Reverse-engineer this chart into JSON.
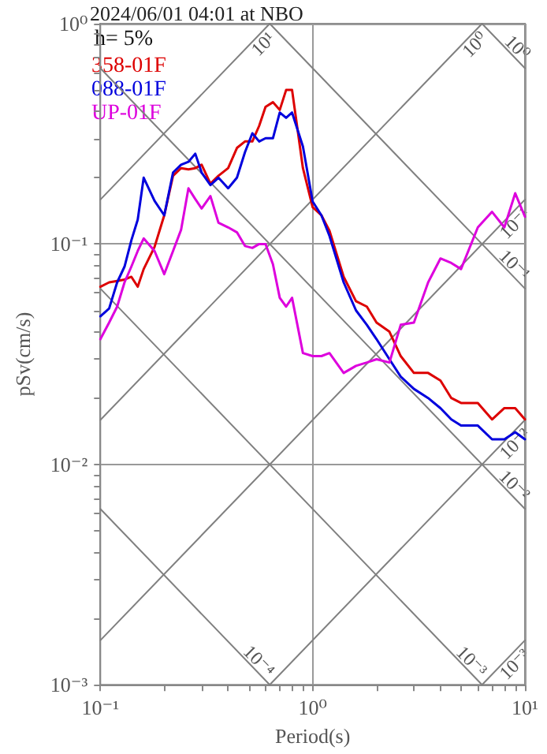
{
  "chart_data": {
    "type": "line",
    "title": "2024/06/01 04:01 at NBO",
    "xlabel": "Period(s)",
    "ylabel": "pSv(cm/s)",
    "annotations": [
      "h= 5%",
      {
        "text": "10¹",
        "x": 0.628,
        "y": 1
      },
      {
        "text": "10⁰",
        "x": 6.28,
        "y": 1
      },
      {
        "text": "10⁻¹",
        "x": 10,
        "y": 0.159
      },
      {
        "text": "10⁻²",
        "x": 10,
        "y": 0.0159
      },
      {
        "text": "10⁻³",
        "x": 10,
        "y": 0.00159
      },
      {
        "text": "10⁰",
        "x": 10,
        "y": 0.628
      },
      {
        "text": "10⁻¹",
        "x": 10,
        "y": 0.0628
      },
      {
        "text": "10⁻²",
        "x": 10,
        "y": 0.00628
      },
      {
        "text": "10⁻³",
        "x": 6.28,
        "y": 0.001
      },
      {
        "text": "10⁻⁴",
        "x": 0.628,
        "y": 0.001
      }
    ],
    "log": "xy",
    "grid": true,
    "legend": "top left",
    "marker": "none",
    "line_style": "solid",
    "xlim": [
      0.1,
      10
    ],
    "ylim": [
      0.001,
      1
    ],
    "xticks": [
      {
        "value": 0.1,
        "label": "10⁻¹"
      },
      {
        "value": 0.2,
        "label": null
      },
      {
        "value": 0.3,
        "label": null
      },
      {
        "value": 0.4,
        "label": null
      },
      {
        "value": 0.5,
        "label": null
      },
      {
        "value": 0.6,
        "label": null
      },
      {
        "value": 0.7,
        "label": null
      },
      {
        "value": 0.8,
        "label": null
      },
      {
        "value": 0.9,
        "label": null
      },
      {
        "value": 1,
        "label": "10⁰"
      },
      {
        "value": 2,
        "label": null
      },
      {
        "value": 3,
        "label": null
      },
      {
        "value": 4,
        "label": null
      },
      {
        "value": 5,
        "label": null
      },
      {
        "value": 6,
        "label": null
      },
      {
        "value": 7,
        "label": null
      },
      {
        "value": 8,
        "label": null
      },
      {
        "value": 9,
        "label": null
      },
      {
        "value": 10,
        "label": "10¹"
      }
    ],
    "yticks": [
      {
        "value": 0.001,
        "label": "10⁻³"
      },
      {
        "value": 0.002,
        "label": null
      },
      {
        "value": 0.003,
        "label": null
      },
      {
        "value": 0.004,
        "label": null
      },
      {
        "value": 0.005,
        "label": null
      },
      {
        "value": 0.006,
        "label": null
      },
      {
        "value": 0.007,
        "label": null
      },
      {
        "value": 0.008,
        "label": null
      },
      {
        "value": 0.009,
        "label": null
      },
      {
        "value": 0.01,
        "label": "10⁻²"
      },
      {
        "value": 0.02,
        "label": null
      },
      {
        "value": 0.03,
        "label": null
      },
      {
        "value": 0.04,
        "label": null
      },
      {
        "value": 0.05,
        "label": null
      },
      {
        "value": 0.06,
        "label": null
      },
      {
        "value": 0.07,
        "label": null
      },
      {
        "value": 0.08,
        "label": null
      },
      {
        "value": 0.09,
        "label": null
      },
      {
        "value": 0.1,
        "label": "10⁻¹"
      },
      {
        "value": 0.2,
        "label": null
      },
      {
        "value": 0.3,
        "label": null
      },
      {
        "value": 0.4,
        "label": null
      },
      {
        "value": 0.5,
        "label": null
      },
      {
        "value": 0.6,
        "label": null
      },
      {
        "value": 0.7,
        "label": null
      },
      {
        "value": 0.8,
        "label": null
      },
      {
        "value": 0.9,
        "label": null
      },
      {
        "value": 1,
        "label": "10⁰"
      }
    ],
    "x": [
      0.1,
      0.11,
      0.12,
      0.13,
      0.14,
      0.15,
      0.16,
      0.18,
      0.2,
      0.22,
      0.24,
      0.26,
      0.28,
      0.3,
      0.33,
      0.36,
      0.4,
      0.44,
      0.48,
      0.52,
      0.56,
      0.6,
      0.65,
      0.7,
      0.75,
      0.8,
      0.9,
      1.0,
      1.1,
      1.2,
      1.4,
      1.6,
      1.8,
      2,
      2.3,
      2.6,
      3,
      3.5,
      4,
      4.5,
      5,
      6,
      7,
      8,
      9,
      10
    ],
    "series": [
      {
        "name": "358-01F",
        "color": "#dd0000",
        "values": [
          0.064,
          0.067,
          0.068,
          0.069,
          0.071,
          0.064,
          0.077,
          0.097,
          0.135,
          0.204,
          0.221,
          0.218,
          0.221,
          0.229,
          0.188,
          0.204,
          0.221,
          0.273,
          0.292,
          0.292,
          0.344,
          0.419,
          0.44,
          0.406,
          0.5,
          0.5,
          0.221,
          0.147,
          0.135,
          0.115,
          0.071,
          0.055,
          0.052,
          0.044,
          0.04,
          0.031,
          0.026,
          0.026,
          0.024,
          0.02,
          0.019,
          0.019,
          0.016,
          0.018,
          0.018,
          0.016
        ]
      },
      {
        "name": "088-01F",
        "color": "#0000dd",
        "values": [
          0.047,
          0.051,
          0.067,
          0.079,
          0.104,
          0.129,
          0.2,
          0.157,
          0.135,
          0.211,
          0.229,
          0.236,
          0.257,
          0.211,
          0.185,
          0.2,
          0.179,
          0.2,
          0.261,
          0.318,
          0.292,
          0.302,
          0.302,
          0.395,
          0.374,
          0.395,
          0.277,
          0.156,
          0.135,
          0.109,
          0.067,
          0.05,
          0.043,
          0.037,
          0.03,
          0.025,
          0.022,
          0.02,
          0.018,
          0.016,
          0.015,
          0.015,
          0.013,
          0.013,
          0.014,
          0.013
        ]
      },
      {
        "name": "UP-01F",
        "color": "#dd00dd",
        "values": [
          0.037,
          0.044,
          0.052,
          0.067,
          0.079,
          0.093,
          0.106,
          0.093,
          0.073,
          0.093,
          0.116,
          0.179,
          0.16,
          0.145,
          0.165,
          0.125,
          0.119,
          0.113,
          0.098,
          0.096,
          0.1,
          0.1,
          0.081,
          0.057,
          0.052,
          0.057,
          0.032,
          0.031,
          0.031,
          0.032,
          0.026,
          0.028,
          0.029,
          0.03,
          0.029,
          0.043,
          0.044,
          0.067,
          0.086,
          0.082,
          0.077,
          0.119,
          0.14,
          0.119,
          0.17,
          0.133
        ]
      },
      {
        "color": "#808080",
        "x": [
          0.1,
          0.628
        ],
        "values": [
          0.159,
          1
        ]
      },
      {
        "color": "#808080",
        "x": [
          0.1,
          6.28
        ],
        "values": [
          0.0159,
          1
        ]
      },
      {
        "color": "#808080",
        "x": [
          0.1,
          10
        ],
        "values": [
          0.00159,
          0.159
        ]
      },
      {
        "color": "#808080",
        "x": [
          0.628,
          10
        ],
        "values": [
          0.001,
          0.0159
        ]
      },
      {
        "color": "#808080",
        "x": [
          6.28,
          10
        ],
        "values": [
          0.001,
          0.00159
        ]
      },
      {
        "color": "#808080",
        "x": [
          6.28,
          10
        ],
        "values": [
          1,
          0.628
        ]
      },
      {
        "color": "#808080",
        "x": [
          0.628,
          10
        ],
        "values": [
          1,
          0.0628
        ]
      },
      {
        "color": "#808080",
        "x": [
          0.1,
          10
        ],
        "values": [
          0.628,
          0.00628
        ]
      },
      {
        "color": "#808080",
        "x": [
          0.1,
          6.28
        ],
        "values": [
          0.0628,
          0.001
        ]
      },
      {
        "color": "#808080",
        "x": [
          0.1,
          0.628
        ],
        "values": [
          0.00628,
          0.001
        ]
      }
    ]
  }
}
